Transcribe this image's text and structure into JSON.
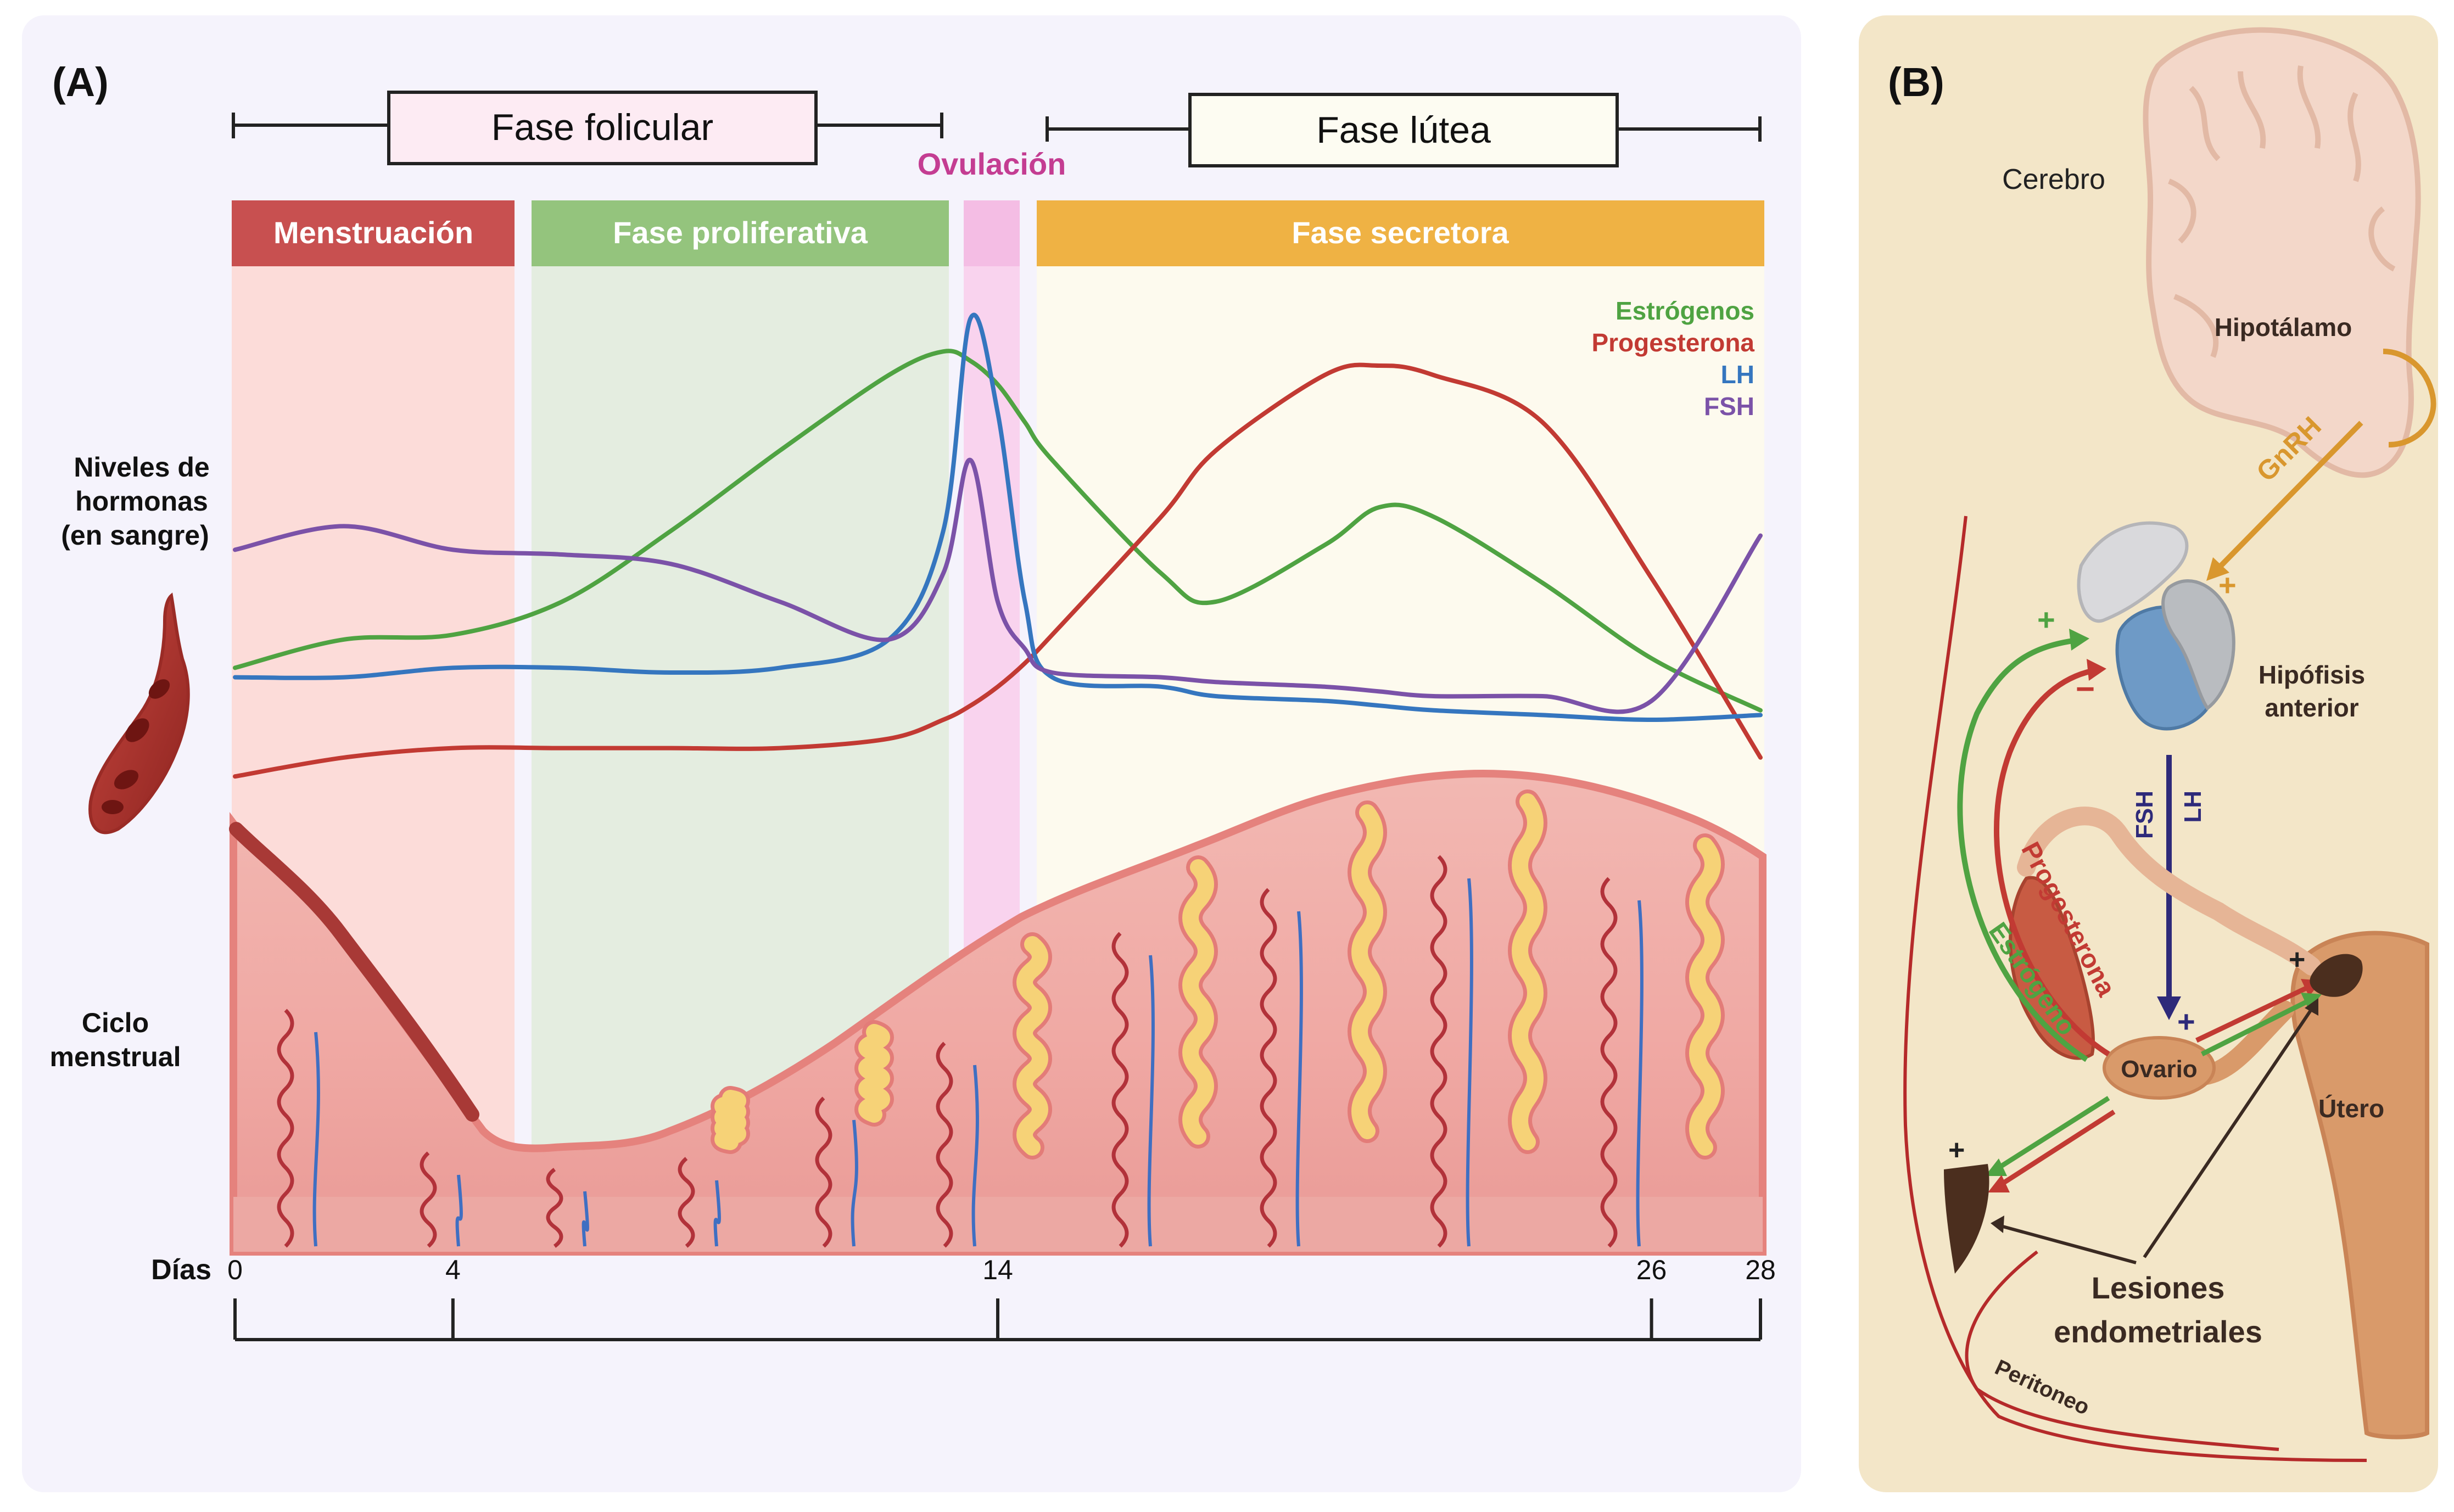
{
  "panel_a": {
    "label": "(A)",
    "phase_top": {
      "follicular": "Fase folicular",
      "luteal": "Fase lútea",
      "ovulation": "Ovulación"
    },
    "phase_bands": {
      "menstruation": "Menstruación",
      "proliferative": "Fase proliferativa",
      "secretory": "Fase secretora"
    },
    "legend": [
      {
        "name": "Estrógenos",
        "color": "#4fa342"
      },
      {
        "name": "Progesterona",
        "color": "#c23a33"
      },
      {
        "name": "LH",
        "color": "#3576bf"
      },
      {
        "name": "FSH",
        "color": "#7b52a8"
      }
    ],
    "row_labels": {
      "hormones_1": "Niveles de",
      "hormones_2": "hormonas",
      "hormones_3": "(en sangre)",
      "cycle_1": "Ciclo",
      "cycle_2": "menstrual",
      "days": "Días"
    },
    "days_axis": {
      "min": 0,
      "max": 28,
      "ticks": [
        "0",
        "4",
        "14",
        "26",
        "28"
      ]
    }
  },
  "chart_data": {
    "type": "line",
    "title": "",
    "xlabel": "Días",
    "ylabel": "Niveles de hormonas (en sangre)",
    "xlim": [
      0,
      28
    ],
    "ylim": [
      0,
      100
    ],
    "x": [
      0,
      2,
      4,
      6,
      8,
      10,
      12,
      13,
      13.5,
      14,
      14.5,
      15,
      17,
      18,
      20,
      21,
      22,
      24,
      26,
      28
    ],
    "series": [
      {
        "name": "Estrógenos",
        "values": [
          26,
          32,
          33,
          40,
          55,
          72,
          88,
          93,
          91,
          86,
          78,
          70,
          46,
          40,
          52,
          60,
          58,
          44,
          28,
          17
        ]
      },
      {
        "name": "Progesterona",
        "values": [
          3,
          7,
          9,
          9,
          9,
          9,
          11,
          15,
          18,
          22,
          27,
          33,
          58,
          72,
          88,
          90,
          88,
          78,
          45,
          7
        ]
      },
      {
        "name": "LH",
        "values": [
          24,
          24,
          26,
          26,
          25,
          26,
          32,
          55,
          100,
          80,
          40,
          24,
          22,
          20,
          19,
          18,
          17,
          16,
          15,
          16
        ]
      },
      {
        "name": "FSH",
        "values": [
          51,
          56,
          51,
          50,
          48,
          40,
          32,
          46,
          70,
          40,
          30,
          25,
          24,
          23,
          22,
          21,
          20,
          20,
          19,
          54
        ]
      }
    ]
  },
  "panel_b": {
    "label": "(B)",
    "brain": "Cerebro",
    "hypothalamus": "Hipotálamo",
    "gnrh": "GnRH",
    "pituitary_1": "Hipófisis",
    "pituitary_2": "anterior",
    "fsh": "FSH",
    "lh": "LH",
    "progesterone": "Progesterona",
    "estrogen": "Estrógeno",
    "ovary": "Ovario",
    "uterus": "Útero",
    "lesions_1": "Lesiones",
    "lesions_2": "endometriales",
    "peritoneum": "Peritoneo",
    "plus": "+",
    "minus": "−"
  }
}
